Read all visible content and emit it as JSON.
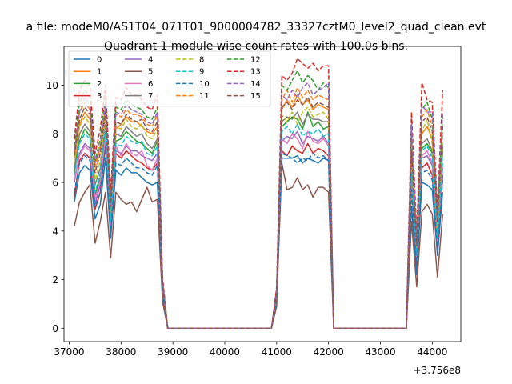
{
  "suptitle": "a file: modeM0/AS1T04_071T01_9000004782_33327cztM0_level2_quad_clean.evt",
  "chart_data": {
    "type": "line",
    "title": "Quadrant 1 module wise count rates with 100.0s bins.",
    "xlabel": "",
    "ylabel": "",
    "x_offset_label": "+3.756e8",
    "xlim": [
      36900,
      44550
    ],
    "ylim": [
      -0.55,
      11.6
    ],
    "x_ticks": [
      37000,
      38000,
      39000,
      40000,
      41000,
      42000,
      43000,
      44000
    ],
    "x_tick_labels": [
      "37000",
      "38000",
      "39000",
      "40000",
      "41000",
      "42000",
      "43000",
      "44000"
    ],
    "y_ticks": [
      0,
      2,
      4,
      6,
      8,
      10
    ],
    "y_tick_labels": [
      "0",
      "2",
      "4",
      "6",
      "8",
      "10"
    ],
    "grid": false,
    "legend_position": "upper-left",
    "legend_columns": 4,
    "x": [
      37100,
      37200,
      37300,
      37400,
      37500,
      37600,
      37700,
      37800,
      37900,
      38000,
      38100,
      38200,
      38300,
      38400,
      38500,
      38600,
      38700,
      38800,
      38900,
      39000,
      39100,
      39200,
      39300,
      39400,
      39500,
      39600,
      39700,
      39800,
      39900,
      40000,
      40100,
      40200,
      40300,
      40400,
      40500,
      40600,
      40700,
      40800,
      40900,
      41000,
      41100,
      41200,
      41300,
      41400,
      41500,
      41600,
      41700,
      41800,
      41900,
      42000,
      42100,
      42200,
      42300,
      42400,
      42500,
      42600,
      42700,
      42800,
      42900,
      43000,
      43100,
      43200,
      43300,
      43400,
      43500,
      43600,
      43700,
      43800,
      43900,
      44000,
      44100,
      44200
    ],
    "series": [
      {
        "name": "0",
        "color": "#1f77b4",
        "dash": "solid",
        "values": [
          5.2,
          6.4,
          6.7,
          6.5,
          4.5,
          5.1,
          7.0,
          3.7,
          6.5,
          6.3,
          6.6,
          6.4,
          6.4,
          6.2,
          6.0,
          5.9,
          6.0,
          1.4,
          0,
          0,
          0,
          0,
          0,
          0,
          0,
          0,
          0,
          0,
          0,
          0,
          0,
          0,
          0,
          0,
          0,
          0,
          0,
          0,
          0,
          1.2,
          7.0,
          7.0,
          7.0,
          7.1,
          6.8,
          7.0,
          6.9,
          6.8,
          7.0,
          6.9,
          0,
          0,
          0,
          0,
          0,
          0,
          0,
          0,
          0,
          0,
          0,
          0,
          0,
          0,
          0,
          5.0,
          2.2,
          6.0,
          5.9,
          5.7,
          3.0,
          5.6
        ]
      },
      {
        "name": "1",
        "color": "#ff7f0e",
        "dash": "solid",
        "values": [
          7.0,
          8.4,
          8.9,
          8.6,
          6.8,
          7.5,
          8.8,
          5.2,
          8.2,
          8.4,
          8.7,
          8.5,
          8.5,
          8.3,
          8.1,
          8.0,
          8.3,
          1.8,
          0,
          0,
          0,
          0,
          0,
          0,
          0,
          0,
          0,
          0,
          0,
          0,
          0,
          0,
          0,
          0,
          0,
          0,
          0,
          0,
          0,
          1.5,
          9.0,
          9.4,
          9.1,
          9.6,
          9.2,
          9.4,
          9.0,
          9.2,
          9.1,
          9.0,
          0,
          0,
          0,
          0,
          0,
          0,
          0,
          0,
          0,
          0,
          0,
          0,
          0,
          0,
          0,
          7.0,
          3.3,
          8.0,
          8.3,
          7.8,
          4.2,
          7.6
        ]
      },
      {
        "name": "2",
        "color": "#2ca02c",
        "dash": "solid",
        "values": [
          6.4,
          7.7,
          8.2,
          7.9,
          5.5,
          6.2,
          8.1,
          4.3,
          7.7,
          7.8,
          8.1,
          7.9,
          7.7,
          7.6,
          7.4,
          7.2,
          7.7,
          1.6,
          0,
          0,
          0,
          0,
          0,
          0,
          0,
          0,
          0,
          0,
          0,
          0,
          0,
          0,
          0,
          0,
          0,
          0,
          0,
          0,
          0,
          1.4,
          8.3,
          8.5,
          8.7,
          8.6,
          8.2,
          8.9,
          8.3,
          8.5,
          8.2,
          8.3,
          0,
          0,
          0,
          0,
          0,
          0,
          0,
          0,
          0,
          0,
          0,
          0,
          0,
          0,
          0,
          6.5,
          3.0,
          7.4,
          7.6,
          7.2,
          3.8,
          7.3
        ]
      },
      {
        "name": "3",
        "color": "#d62728",
        "dash": "solid",
        "values": [
          5.4,
          6.9,
          7.2,
          7.0,
          4.9,
          5.6,
          7.6,
          4.0,
          7.2,
          7.0,
          7.3,
          7.1,
          6.9,
          6.8,
          6.6,
          6.5,
          6.8,
          1.5,
          0,
          0,
          0,
          0,
          0,
          0,
          0,
          0,
          0,
          0,
          0,
          0,
          0,
          0,
          0,
          0,
          0,
          0,
          0,
          0,
          0,
          1.3,
          7.3,
          7.1,
          7.5,
          7.3,
          7.2,
          7.6,
          7.2,
          7.4,
          7.3,
          7.1,
          0,
          0,
          0,
          0,
          0,
          0,
          0,
          0,
          0,
          0,
          0,
          0,
          0,
          0,
          0,
          5.9,
          2.6,
          6.6,
          6.8,
          6.3,
          3.3,
          6.3
        ]
      },
      {
        "name": "4",
        "color": "#9467bd",
        "dash": "solid",
        "values": [
          6.0,
          7.2,
          7.6,
          7.4,
          5.1,
          5.9,
          7.9,
          4.1,
          7.3,
          7.2,
          7.5,
          7.3,
          7.3,
          7.1,
          7.0,
          6.9,
          7.2,
          1.6,
          0,
          0,
          0,
          0,
          0,
          0,
          0,
          0,
          0,
          0,
          0,
          0,
          0,
          0,
          0,
          0,
          0,
          0,
          0,
          0,
          0,
          1.3,
          7.7,
          7.9,
          7.8,
          8.1,
          7.6,
          7.9,
          7.8,
          7.7,
          7.9,
          7.6,
          0,
          0,
          0,
          0,
          0,
          0,
          0,
          0,
          0,
          0,
          0,
          0,
          0,
          0,
          0,
          6.2,
          2.8,
          7.0,
          7.1,
          6.7,
          3.6,
          6.6
        ]
      },
      {
        "name": "5",
        "color": "#8c564b",
        "dash": "solid",
        "values": [
          4.2,
          5.2,
          5.6,
          5.9,
          3.5,
          4.4,
          5.6,
          2.9,
          5.6,
          5.3,
          5.1,
          5.2,
          4.8,
          5.3,
          5.8,
          5.2,
          5.3,
          1.1,
          0,
          0,
          0,
          0,
          0,
          0,
          0,
          0,
          0,
          0,
          0,
          0,
          0,
          0,
          0,
          0,
          0,
          0,
          0,
          0,
          0,
          0.9,
          6.8,
          5.7,
          5.8,
          6.2,
          5.7,
          5.9,
          5.4,
          5.8,
          5.8,
          5.6,
          0,
          0,
          0,
          0,
          0,
          0,
          0,
          0,
          0,
          0,
          0,
          0,
          0,
          0,
          0,
          4.4,
          1.7,
          4.8,
          5.1,
          4.7,
          2.1,
          4.7
        ]
      },
      {
        "name": "6",
        "color": "#e377c2",
        "dash": "solid",
        "values": [
          6.1,
          7.1,
          7.5,
          7.3,
          5.3,
          6.1,
          7.9,
          4.3,
          7.5,
          7.1,
          7.6,
          7.2,
          7.1,
          7.3,
          6.7,
          6.5,
          7.0,
          1.6,
          0,
          0,
          0,
          0,
          0,
          0,
          0,
          0,
          0,
          0,
          0,
          0,
          0,
          0,
          0,
          0,
          0,
          0,
          0,
          0,
          0,
          1.3,
          7.8,
          7.6,
          8.0,
          7.8,
          7.4,
          8.1,
          7.7,
          7.6,
          7.8,
          7.5,
          0,
          0,
          0,
          0,
          0,
          0,
          0,
          0,
          0,
          0,
          0,
          0,
          0,
          0,
          0,
          6.1,
          2.8,
          7.1,
          7.3,
          6.8,
          3.5,
          6.8
        ]
      },
      {
        "name": "7",
        "color": "#7f7f7f",
        "dash": "solid",
        "values": [
          6.6,
          8.0,
          8.4,
          8.1,
          5.9,
          6.6,
          8.4,
          4.6,
          8.0,
          7.9,
          8.3,
          8.1,
          7.9,
          8.0,
          7.6,
          7.4,
          7.8,
          1.7,
          0,
          0,
          0,
          0,
          0,
          0,
          0,
          0,
          0,
          0,
          0,
          0,
          0,
          0,
          0,
          0,
          0,
          0,
          0,
          0,
          0,
          1.4,
          8.5,
          8.7,
          8.6,
          8.9,
          8.4,
          8.8,
          8.6,
          8.6,
          8.5,
          8.5,
          0,
          0,
          0,
          0,
          0,
          0,
          0,
          0,
          0,
          0,
          0,
          0,
          0,
          0,
          0,
          6.7,
          3.1,
          7.6,
          7.8,
          7.3,
          3.9,
          7.5
        ]
      },
      {
        "name": "8",
        "color": "#bcbd22",
        "dash": "dashed",
        "values": [
          6.8,
          8.3,
          8.7,
          8.4,
          6.1,
          6.9,
          8.7,
          4.8,
          8.3,
          8.2,
          8.6,
          8.3,
          8.2,
          8.4,
          7.9,
          7.8,
          8.2,
          1.8,
          0,
          0,
          0,
          0,
          0,
          0,
          0,
          0,
          0,
          0,
          0,
          0,
          0,
          0,
          0,
          0,
          0,
          0,
          0,
          0,
          0,
          1.5,
          8.8,
          8.5,
          8.9,
          8.4,
          8.9,
          9.1,
          8.7,
          8.8,
          8.9,
          8.6,
          0,
          0,
          0,
          0,
          0,
          0,
          0,
          0,
          0,
          0,
          0,
          0,
          0,
          0,
          0,
          7.1,
          3.2,
          8.1,
          8.6,
          7.6,
          4.1,
          7.9
        ]
      },
      {
        "name": "9",
        "color": "#17becf",
        "dash": "dashed",
        "values": [
          6.3,
          7.6,
          8.0,
          7.8,
          5.6,
          6.4,
          8.2,
          4.4,
          7.6,
          7.5,
          7.9,
          7.7,
          7.6,
          7.7,
          7.2,
          7.1,
          7.5,
          1.7,
          0,
          0,
          0,
          0,
          0,
          0,
          0,
          0,
          0,
          0,
          0,
          0,
          0,
          0,
          0,
          0,
          0,
          0,
          0,
          0,
          0,
          1.4,
          8.1,
          8.3,
          8.0,
          8.4,
          7.9,
          8.1,
          8.0,
          8.2,
          7.9,
          8.0,
          0,
          0,
          0,
          0,
          0,
          0,
          0,
          0,
          0,
          0,
          0,
          0,
          0,
          0,
          0,
          6.4,
          3.0,
          7.3,
          7.5,
          7.0,
          3.7,
          7.2
        ]
      },
      {
        "name": "10",
        "color": "#1f77b4",
        "dash": "dashed",
        "values": [
          5.6,
          6.8,
          7.1,
          6.9,
          5.0,
          5.6,
          7.4,
          3.9,
          6.8,
          6.7,
          7.0,
          6.8,
          6.6,
          6.6,
          6.4,
          6.3,
          6.7,
          1.5,
          0,
          0,
          0,
          0,
          0,
          0,
          0,
          0,
          0,
          0,
          0,
          0,
          0,
          0,
          0,
          0,
          0,
          0,
          0,
          0,
          0,
          1.2,
          7.2,
          7.1,
          7.0,
          6.8,
          7.0,
          6.9,
          7.2,
          7.0,
          7.1,
          6.9,
          0,
          0,
          0,
          0,
          0,
          0,
          0,
          0,
          0,
          0,
          0,
          0,
          0,
          0,
          0,
          5.7,
          2.5,
          6.4,
          6.5,
          6.1,
          3.2,
          6.1
        ]
      },
      {
        "name": "11",
        "color": "#ff7f0e",
        "dash": "dashed",
        "values": [
          7.2,
          8.9,
          9.3,
          9.0,
          6.6,
          7.4,
          9.1,
          5.1,
          8.8,
          8.7,
          9.0,
          8.8,
          8.8,
          8.7,
          8.4,
          8.3,
          8.8,
          1.9,
          0,
          0,
          0,
          0,
          0,
          0,
          0,
          0,
          0,
          0,
          0,
          0,
          0,
          0,
          0,
          0,
          0,
          0,
          0,
          0,
          0,
          1.6,
          9.4,
          9.8,
          9.3,
          9.9,
          9.5,
          9.8,
          9.4,
          9.6,
          9.5,
          9.4,
          0,
          0,
          0,
          0,
          0,
          0,
          0,
          0,
          0,
          0,
          0,
          0,
          0,
          0,
          0,
          7.7,
          3.5,
          8.7,
          9.0,
          8.3,
          4.5,
          8.4
        ]
      },
      {
        "name": "12",
        "color": "#2ca02c",
        "dash": "dashed",
        "values": [
          7.5,
          9.3,
          9.8,
          9.5,
          6.9,
          7.8,
          9.6,
          5.3,
          9.1,
          9.0,
          9.4,
          9.2,
          9.1,
          9.0,
          8.7,
          8.6,
          9.1,
          2.0,
          0,
          0,
          0,
          0,
          0,
          0,
          0,
          0,
          0,
          0,
          0,
          0,
          0,
          0,
          0,
          0,
          0,
          0,
          0,
          0,
          0,
          1.6,
          10.0,
          9.8,
          10.2,
          10.6,
          10.1,
          10.4,
          10.2,
          9.8,
          10.1,
          9.9,
          0,
          0,
          0,
          0,
          0,
          0,
          0,
          0,
          0,
          0,
          0,
          0,
          0,
          0,
          0,
          8.0,
          3.6,
          9.0,
          9.3,
          8.6,
          4.7,
          8.8
        ]
      },
      {
        "name": "13",
        "color": "#d62728",
        "dash": "dashed",
        "values": [
          7.8,
          9.8,
          10.2,
          10.0,
          7.2,
          8.2,
          10.0,
          5.6,
          9.5,
          9.4,
          9.9,
          9.6,
          9.6,
          9.4,
          9.1,
          9.0,
          9.6,
          2.1,
          0,
          0,
          0,
          0,
          0,
          0,
          0,
          0,
          0,
          0,
          0,
          0,
          0,
          0,
          0,
          0,
          0,
          0,
          0,
          0,
          0,
          1.7,
          10.4,
          10.2,
          10.5,
          11.1,
          10.9,
          10.7,
          10.9,
          10.6,
          10.8,
          10.8,
          0,
          0,
          0,
          0,
          0,
          0,
          0,
          0,
          0,
          0,
          0,
          0,
          0,
          0,
          0,
          8.9,
          3.9,
          10.1,
          9.4,
          9.3,
          4.9,
          9.8
        ]
      },
      {
        "name": "14",
        "color": "#9467bd",
        "dash": "dashed",
        "values": [
          7.3,
          8.9,
          9.5,
          9.2,
          6.8,
          7.5,
          9.3,
          5.1,
          8.9,
          8.8,
          9.2,
          9.0,
          8.9,
          8.8,
          8.5,
          8.4,
          8.9,
          1.9,
          0,
          0,
          0,
          0,
          0,
          0,
          0,
          0,
          0,
          0,
          0,
          0,
          0,
          0,
          0,
          0,
          0,
          0,
          0,
          0,
          0,
          1.6,
          9.6,
          9.4,
          9.8,
          9.5,
          9.9,
          10.1,
          9.6,
          9.8,
          9.9,
          10.1,
          0,
          0,
          0,
          0,
          0,
          0,
          0,
          0,
          0,
          0,
          0,
          0,
          0,
          0,
          0,
          8.4,
          3.6,
          9.2,
          8.9,
          8.9,
          4.6,
          8.9
        ]
      },
      {
        "name": "15",
        "color": "#8c564b",
        "dash": "dashed",
        "values": [
          7.1,
          8.6,
          9.1,
          8.8,
          6.4,
          7.2,
          8.9,
          5.0,
          8.5,
          8.4,
          8.8,
          8.6,
          8.5,
          8.6,
          8.2,
          8.1,
          8.5,
          1.9,
          0,
          0,
          0,
          0,
          0,
          0,
          0,
          0,
          0,
          0,
          0,
          0,
          0,
          0,
          0,
          0,
          0,
          0,
          0,
          0,
          0,
          1.5,
          9.1,
          9.3,
          9.0,
          9.4,
          9.2,
          9.5,
          9.1,
          9.3,
          9.2,
          9.1,
          0,
          0,
          0,
          0,
          0,
          0,
          0,
          0,
          0,
          0,
          0,
          0,
          0,
          0,
          0,
          7.3,
          3.4,
          8.5,
          8.7,
          8.1,
          4.4,
          8.3
        ]
      }
    ]
  }
}
